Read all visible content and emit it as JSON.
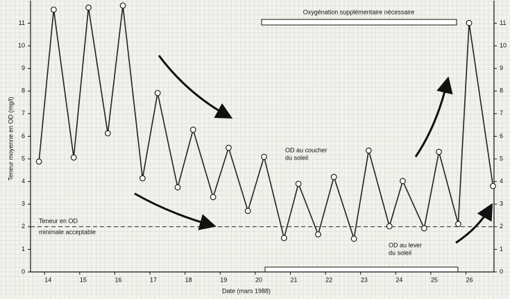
{
  "chart_data": {
    "type": "line",
    "x_label": "Date (mars 1988)",
    "y_label": "Teneur moyenne en OD (mg/l)",
    "x": [
      13.84,
      14.26,
      14.83,
      15.25,
      15.8,
      16.23,
      16.79,
      17.22,
      17.79,
      18.23,
      18.8,
      19.24,
      19.79,
      20.25,
      20.82,
      21.23,
      21.79,
      22.24,
      22.81,
      23.23,
      23.82,
      24.2,
      24.81,
      25.23,
      25.78,
      26.09,
      26.77
    ],
    "values": [
      4.88,
      11.6,
      5.06,
      11.69,
      6.13,
      11.78,
      4.14,
      7.91,
      3.74,
      6.29,
      3.31,
      5.49,
      2.7,
      5.09,
      1.5,
      3.9,
      1.66,
      4.2,
      1.47,
      5.37,
      2.02,
      4.02,
      1.93,
      5.31,
      2.12,
      11.01,
      3.8
    ],
    "color": "#222222",
    "threshold": 2,
    "xlim": [
      13.6,
      26.8
    ],
    "xticks": [
      14,
      15,
      16,
      17,
      18,
      19,
      20,
      21,
      22,
      23,
      24,
      25,
      26
    ],
    "ylim": [
      0,
      12
    ],
    "yticks": [
      0,
      1,
      2,
      3,
      4,
      5,
      6,
      7,
      8,
      9,
      10,
      11
    ],
    "grid": true,
    "annotations": {
      "supplement": "Oxygénation supplémentaire nécessaire",
      "sunset": [
        "OD au coucher",
        "du soleil"
      ],
      "minimum": [
        "Teneur en OD",
        "minimale acceptable"
      ],
      "sunrise": [
        "OD au lever",
        "du soleil"
      ]
    }
  }
}
